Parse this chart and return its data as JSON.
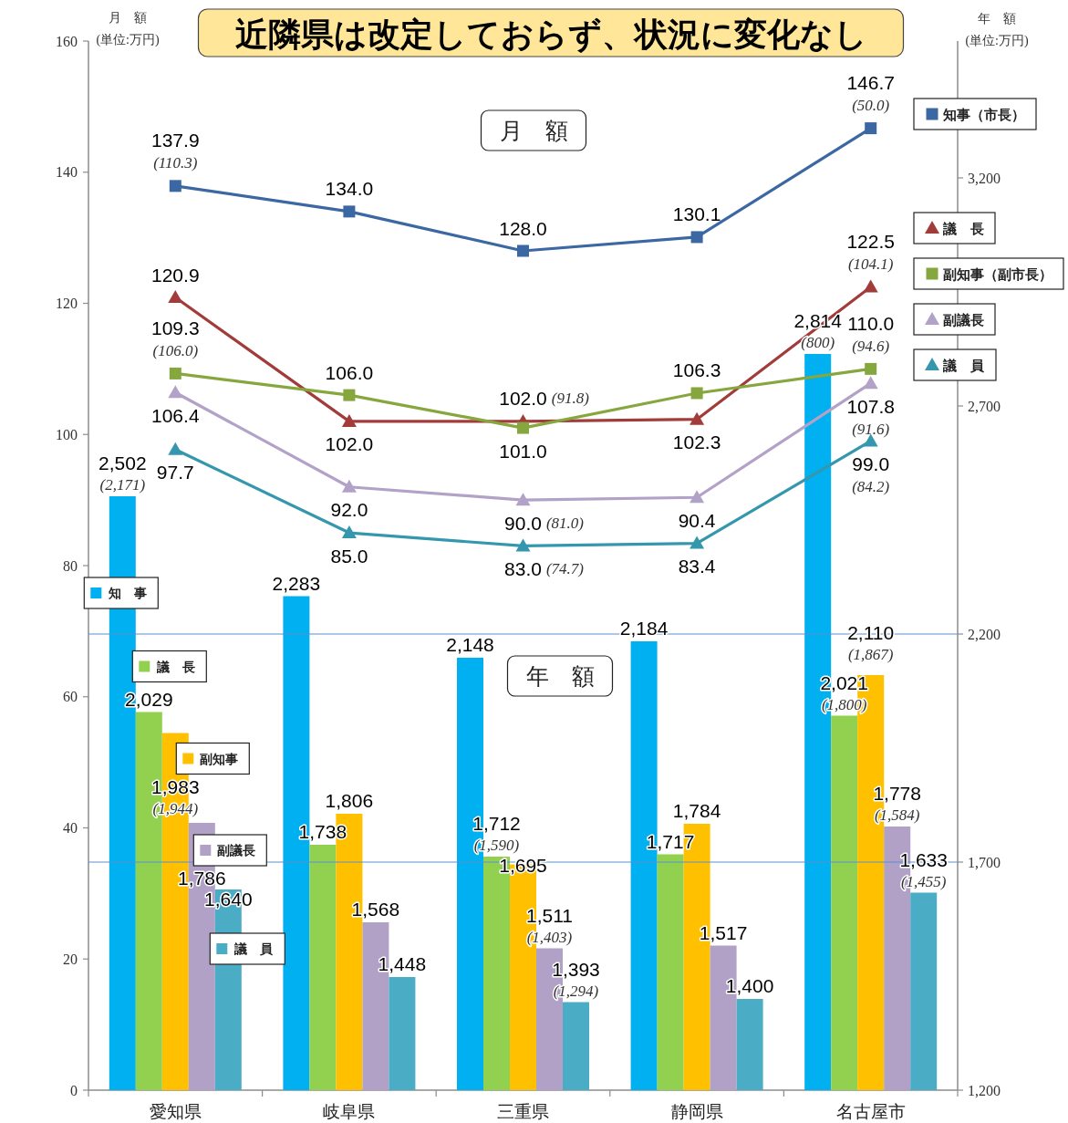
{
  "chart_data": {
    "type": "bar",
    "title": "近隣県は改定しておらず、状況に変化なし",
    "ylabel": "月　額\n(単位:万円)",
    "y2label": "年　額\n(単位:万円)",
    "categories": [
      "愛知県",
      "岐阜県",
      "三重県",
      "静岡県",
      "名古屋市"
    ],
    "ylim": [
      0,
      160
    ],
    "yticks": [
      0,
      20,
      40,
      60,
      80,
      100,
      120,
      140,
      160
    ],
    "y2lim": [
      1200,
      3500
    ],
    "y2ticks": [
      {
        "value": 1200,
        "label": "1,200"
      },
      {
        "value": 1700,
        "label": "1,700"
      },
      {
        "value": 2200,
        "label": "2,200"
      },
      {
        "value": 2700,
        "label": "2,700"
      },
      {
        "value": 3200,
        "label": "3,200"
      }
    ],
    "legend": "right",
    "ref_lines": [
      {
        "axis": "y2",
        "value": 2200,
        "color": "#5b8fd0"
      },
      {
        "axis": "y2",
        "value": 1700,
        "color": "#5b8fd0"
      }
    ],
    "series": [
      {
        "name": "知　事",
        "axis": "y2",
        "color": "#00b0f0",
        "values": [
          2502,
          2283,
          2148,
          2184,
          2814
        ],
        "value_labels": [
          "2,502",
          "2,283",
          "2,148",
          "2,184",
          "2,814"
        ]
      },
      {
        "name": "議　長",
        "axis": "y2",
        "color": "#92d050",
        "values": [
          2029,
          1738,
          1712,
          1717,
          2021
        ],
        "value_labels": [
          "2,029",
          "1,738",
          "1,712",
          "1,717",
          "2,021"
        ]
      },
      {
        "name": "副知事",
        "axis": "y2",
        "color": "#ffc000",
        "values": [
          1983,
          1806,
          1695,
          1784,
          2110
        ],
        "value_labels": [
          "1,983",
          "1,806",
          "1,695",
          "1,784",
          "2,110"
        ]
      },
      {
        "name": "副議長",
        "axis": "y2",
        "color": "#b2a1c7",
        "values": [
          1786,
          1568,
          1511,
          1517,
          1778
        ],
        "value_labels": [
          "1,786",
          "1,568",
          "1,511",
          "1,517",
          "1,778"
        ]
      },
      {
        "name": "議　員",
        "axis": "y2",
        "color": "#4bacc6",
        "values": [
          1640,
          1448,
          1393,
          1400,
          1633
        ],
        "value_labels": [
          "1,640",
          "1,448",
          "1,393",
          "1,400",
          "1,633"
        ]
      },
      {
        "name": "知事（市長）",
        "type": "line",
        "axis": "y",
        "marker": "square",
        "color": "#3b67a3",
        "values": [
          137.9,
          134.0,
          128.0,
          130.1,
          146.7
        ],
        "value_labels": [
          "137.9",
          "134.0",
          "128.0",
          "130.1",
          "146.7"
        ]
      },
      {
        "name": "議　長",
        "type": "line",
        "axis": "y",
        "marker": "triangle",
        "color": "#a23c3a",
        "values": [
          120.9,
          102.0,
          102.0,
          102.3,
          122.5
        ],
        "value_labels": [
          "120.9",
          "102.0",
          "102.0",
          "102.3",
          "122.5"
        ]
      },
      {
        "name": "副知事（副市長）",
        "type": "line",
        "axis": "y",
        "marker": "square",
        "color": "#86a63e",
        "values": [
          109.3,
          106.0,
          101.0,
          106.3,
          110.0
        ],
        "value_labels": [
          "109.3",
          "106.0",
          "101.0",
          "106.3",
          "110.0"
        ]
      },
      {
        "name": "副議長",
        "type": "line",
        "axis": "y",
        "marker": "triangle",
        "color": "#b3a2c7",
        "values": [
          106.4,
          92.0,
          90.0,
          90.4,
          107.8
        ],
        "value_labels": [
          "106.4",
          "92.0",
          "90.0",
          "90.4",
          "107.8"
        ]
      },
      {
        "name": "議　員",
        "type": "line",
        "axis": "y",
        "marker": "triangle",
        "color": "#3597ae",
        "values": [
          97.7,
          85.0,
          83.0,
          83.4,
          99.0
        ],
        "value_labels": [
          "97.7",
          "85.0",
          "83.0",
          "83.4",
          "99.0"
        ]
      }
    ],
    "annotations": [
      "月　額",
      "年　額",
      {
        "text": "(110.3)",
        "x": "愛知県",
        "y": 137.9
      },
      {
        "text": "(50.0)",
        "x": "名古屋市",
        "y": 146.7
      },
      {
        "text": "(91.8)",
        "x": "三重県",
        "y": 102.0
      },
      {
        "text": "(104.1)",
        "x": "名古屋市",
        "y": 122.5
      },
      {
        "text": "(106.0)",
        "x": "愛知県",
        "y": 109.3
      },
      {
        "text": "(94.6)",
        "x": "名古屋市",
        "y": 110.0
      },
      {
        "text": "(81.0)",
        "x": "三重県",
        "y": 90.0
      },
      {
        "text": "(91.6)",
        "x": "名古屋市",
        "y": 107.8
      },
      {
        "text": "(74.7)",
        "x": "三重県",
        "y": 83.0
      },
      {
        "text": "(84.2)",
        "x": "名古屋市",
        "y": 99.0
      },
      "(2,171)",
      "(800)",
      "(1,944)",
      "(1,867)",
      "(1,590)",
      "(1,800)",
      "(1,403)",
      "(1,584)",
      "(1,294)",
      "(1,455)"
    ]
  }
}
